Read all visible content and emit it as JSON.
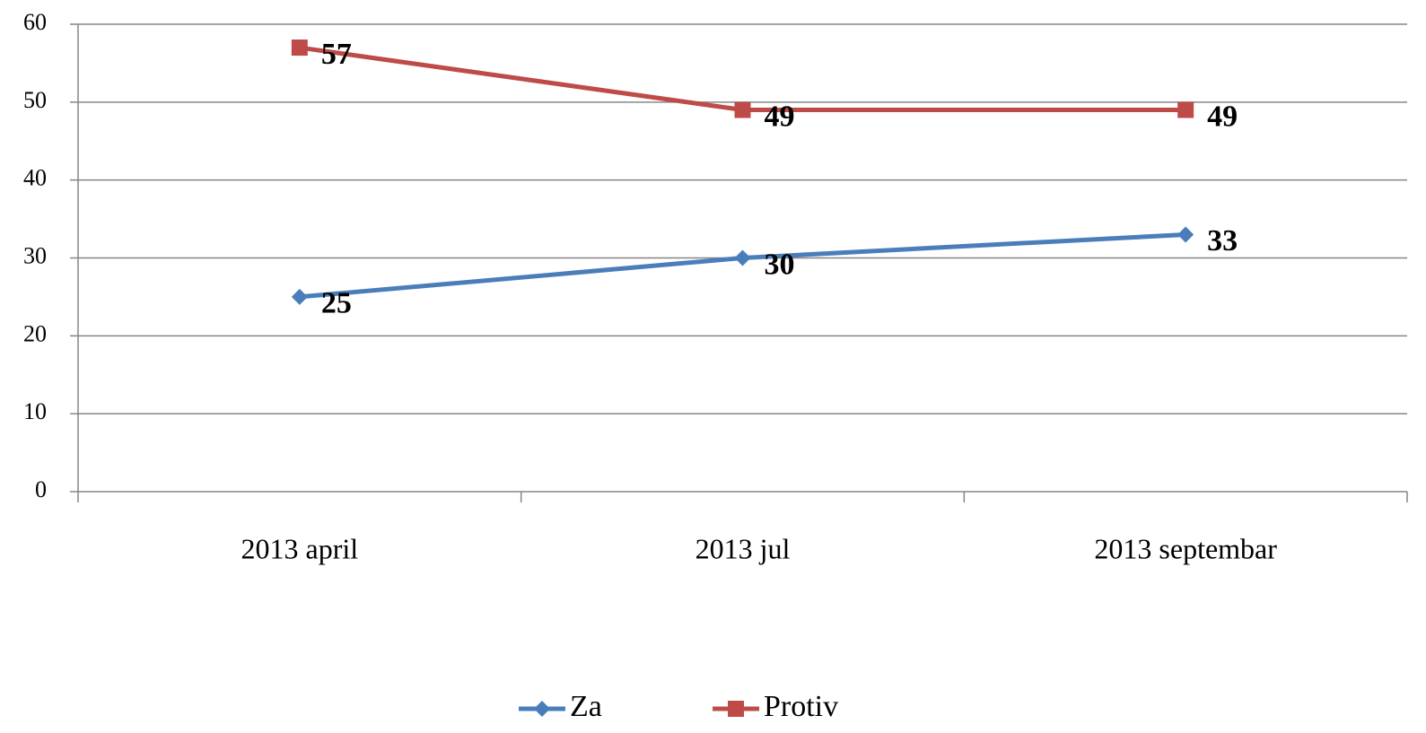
{
  "chart_data": {
    "type": "line",
    "categories": [
      "2013 april",
      "2013 jul",
      "2013 septembar"
    ],
    "series": [
      {
        "name": "Za",
        "color": "#4a7ebb",
        "marker": "diamond",
        "values": [
          25,
          30,
          33
        ]
      },
      {
        "name": "Protiv",
        "color": "#be4b48",
        "marker": "square",
        "values": [
          57,
          49,
          49
        ]
      }
    ],
    "ylim": [
      0,
      60
    ],
    "yticks": [
      0,
      10,
      20,
      30,
      40,
      50,
      60
    ],
    "grid": true,
    "legend": "bottom"
  }
}
